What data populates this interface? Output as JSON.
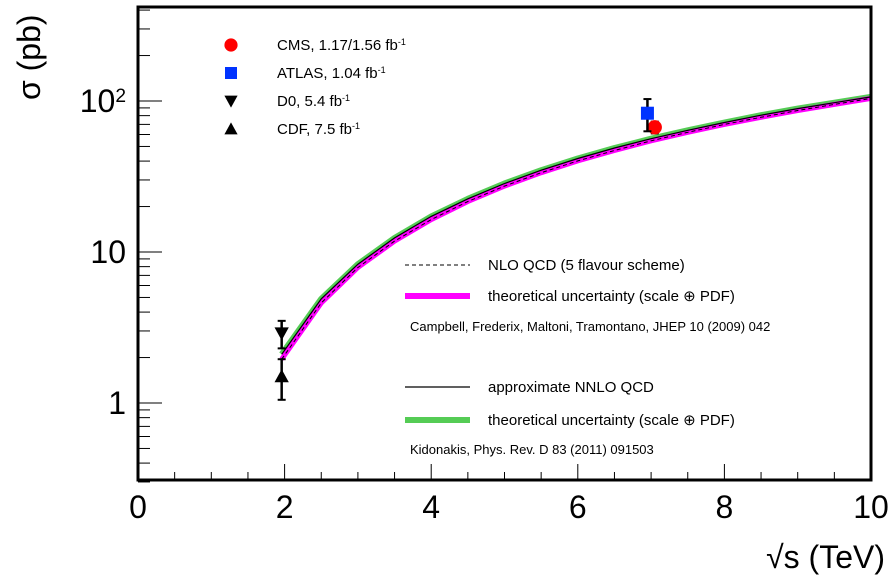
{
  "chart_data": {
    "type": "scatter",
    "xlabel": "√s (TeV)",
    "ylabel": "σ (pb)",
    "xlim": [
      0,
      10
    ],
    "ylim": [
      0.3,
      400
    ],
    "y_scale": "log",
    "x_ticks": [
      "0",
      "2",
      "4",
      "6",
      "8",
      "10"
    ],
    "y_ticks": [
      {
        "value": 1,
        "base": "1",
        "exp": ""
      },
      {
        "value": 10,
        "base": "10",
        "exp": ""
      },
      {
        "value": 100,
        "base": "10",
        "exp": "2"
      }
    ],
    "grid": false,
    "legend_position": "top-left and center-right",
    "measurements": [
      {
        "label": "CMS, 1.17/1.56 fb",
        "lumi_exp": "-1",
        "marker": "circle",
        "color": "#ff0000",
        "x": 7.05,
        "y": 67,
        "err_low": 6,
        "err_high": 6
      },
      {
        "label": "ATLAS, 1.04 fb",
        "lumi_exp": "-1",
        "marker": "square",
        "color": "#0033ff",
        "x": 6.95,
        "y": 83,
        "err_low": 20,
        "err_high": 20
      },
      {
        "label": "D0, 5.4 fb",
        "lumi_exp": "-1",
        "marker": "triangle-down",
        "color": "#000000",
        "x": 1.96,
        "y": 2.9,
        "err_low": 0.6,
        "err_high": 0.6
      },
      {
        "label": "CDF, 7.5 fb",
        "lumi_exp": "-1",
        "marker": "triangle-up",
        "color": "#000000",
        "x": 1.96,
        "y": 1.5,
        "err_low": 0.45,
        "err_high": 0.45
      }
    ],
    "theory_legend": [
      {
        "label": "NLO QCD (5 flavour scheme)",
        "style": "dashed",
        "color": "#000000"
      },
      {
        "label": "theoretical uncertainty (scale ⊕ PDF)",
        "style": "band",
        "color": "#ff00ff"
      },
      {
        "label": "Campbell, Frederix, Maltoni, Tramontano, JHEP 10 (2009) 042",
        "style": "reference"
      },
      {
        "label": "approximate NNLO QCD",
        "style": "solid",
        "color": "#000000"
      },
      {
        "label": "theoretical uncertainty (scale ⊕ PDF)",
        "style": "band",
        "color": "#55cc55"
      },
      {
        "label": "Kidonakis, Phys. Rev. D 83 (2011) 091503",
        "style": "reference"
      }
    ],
    "series": [
      {
        "kind": "nlo",
        "x": [
          1.96,
          2.5,
          3,
          3.5,
          4,
          4.5,
          5,
          5.5,
          6,
          6.5,
          7,
          7.5,
          8,
          8.5,
          9,
          9.5,
          10
        ],
        "y": [
          1.95,
          4.6,
          7.9,
          11.8,
          16.4,
          21.6,
          27.3,
          33.5,
          40.1,
          47.0,
          54.5,
          62.0,
          70.0,
          78.0,
          86.5,
          95.0,
          104.0
        ]
      },
      {
        "kind": "nnlo",
        "x": [
          1.96,
          2.5,
          3,
          3.5,
          4,
          4.5,
          5,
          5.5,
          6,
          6.5,
          7,
          7.5,
          8,
          8.5,
          9,
          9.5,
          10
        ],
        "y": [
          2.1,
          4.9,
          8.3,
          12.4,
          17.2,
          22.5,
          28.4,
          34.8,
          41.6,
          48.8,
          56.3,
          64.0,
          72.0,
          80.5,
          89.0,
          97.5,
          106.5
        ]
      }
    ]
  }
}
